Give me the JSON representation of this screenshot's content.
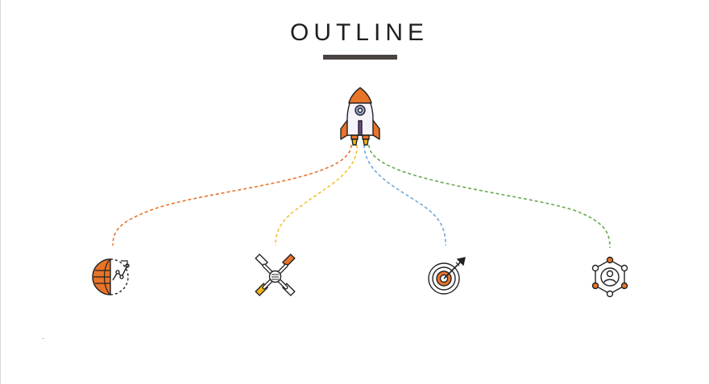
{
  "title": "OUTLINE",
  "colors": {
    "title_bar": "#4a4443",
    "rocket_body": "#e8742a",
    "rocket_window": "#9aa6d8",
    "flame": "#f4b41a",
    "connector_orange": "#e8742a",
    "connector_yellow": "#f1c232",
    "connector_blue": "#6fa8dc",
    "connector_green": "#6aa84f",
    "outline": "#222222"
  },
  "hub": {
    "icon": "rocket-icon"
  },
  "nodes": [
    {
      "icon": "globe-analytics-icon",
      "connector_color": "#e8742a"
    },
    {
      "icon": "teamwork-hands-icon",
      "connector_color": "#f1c232"
    },
    {
      "icon": "target-arrow-icon",
      "connector_color": "#6fa8dc"
    },
    {
      "icon": "user-network-icon",
      "connector_color": "#6aa84f"
    }
  ]
}
